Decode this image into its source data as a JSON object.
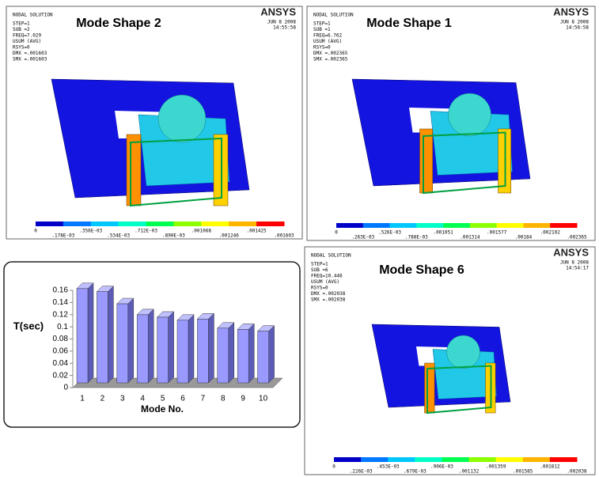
{
  "panels": [
    {
      "title": "Mode Shape 2",
      "header": "NODAL SOLUTION",
      "info": [
        "STEP=1",
        "SUB =2",
        "FREQ=7.029",
        "USUM   (AVG)",
        "RSYS=0",
        "DMX =.001603",
        "SMX =.001603"
      ],
      "logo": "ANSYS",
      "date": "JUN  8 2008",
      "time": "14:55:58",
      "legend": [
        "0",
        ".178E-03",
        ".356E-03",
        ".534E-03",
        ".712E-03",
        ".890E-03",
        ".001068",
        ".001246",
        ".001425",
        ".001603"
      ]
    },
    {
      "title": "Mode Shape 1",
      "header": "NODAL SOLUTION",
      "info": [
        "STEP=1",
        "SUB =1",
        "FREQ=6.762",
        "USUM   (AVG)",
        "RSYS=0",
        "DMX =.002365",
        "SMX =.002365"
      ],
      "logo": "ANSYS",
      "date": "JUN  8 2008",
      "time": "14:56:58",
      "legend": [
        "0",
        ".263E-03",
        ".526E-03",
        ".788E-03",
        ".001051",
        ".001314",
        ".001577",
        ".00184",
        ".002102",
        ".002365"
      ]
    },
    {
      "title": "Mode Shape 6",
      "header": "NODAL SOLUTION",
      "info": [
        "STEP=1",
        "SUB =6",
        "FREQ=10.446",
        "USUM   (AVG)",
        "RSYS=0",
        "DMX =.002038",
        "SMX =.002038"
      ],
      "logo": "ANSYS",
      "date": "JUN  8 2008",
      "time": "14:54:17",
      "legend": [
        "0",
        ".226E-03",
        ".453E-03",
        ".679E-03",
        ".906E-03",
        ".001132",
        ".001359",
        ".001585",
        ".001812",
        ".002038"
      ]
    }
  ],
  "chart_data": {
    "type": "bar",
    "xlabel": "Mode No.",
    "ylabel": "T(sec)",
    "categories": [
      "1",
      "2",
      "3",
      "4",
      "5",
      "6",
      "7",
      "8",
      "9",
      "10"
    ],
    "values": [
      0.155,
      0.15,
      0.13,
      0.112,
      0.108,
      0.103,
      0.105,
      0.09,
      0.088,
      0.085
    ],
    "color": "#9999ff",
    "ylim": [
      0,
      0.16
    ],
    "yticks": [
      0,
      0.02,
      0.04,
      0.06,
      0.08,
      0.1,
      0.12,
      0.14,
      0.16
    ]
  }
}
